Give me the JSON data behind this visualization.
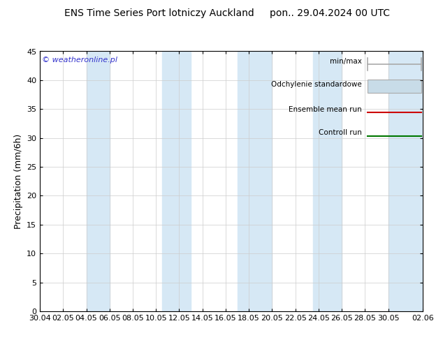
{
  "title_left": "ENS Time Series Port lotniczy Auckland",
  "title_right": "pon.. 29.04.2024 00 UTC",
  "ylabel": "Precipitation (mm/6h)",
  "watermark": "© weatheronline.pl",
  "ylim": [
    0,
    45
  ],
  "yticks": [
    0,
    5,
    10,
    15,
    20,
    25,
    30,
    35,
    40,
    45
  ],
  "bg_color": "#ffffff",
  "plot_bg_color": "#ffffff",
  "shading_color": "#d6e8f5",
  "legend_labels": [
    "min/max",
    "Odchylenie standardowe",
    "Ensemble mean run",
    "Controll run"
  ],
  "minmax_color": "#aaaaaa",
  "odch_color": "#c8dce8",
  "odch_edge_color": "#aaaaaa",
  "ensemble_color": "#cc0000",
  "control_color": "#007700",
  "x_tick_labels": [
    "30.04",
    "02.05",
    "04.05",
    "06.05",
    "08.05",
    "10.05",
    "12.05",
    "14.05",
    "16.05",
    "18.05",
    "20.05",
    "22.05",
    "24.05",
    "26.05",
    "28.05",
    "30.05",
    "02.06"
  ],
  "x_positions": [
    0,
    2,
    4,
    6,
    8,
    10,
    12,
    14,
    16,
    18,
    20,
    22,
    24,
    26,
    28,
    30,
    33
  ],
  "xlim": [
    0,
    33
  ],
  "shade_bands": [
    [
      4,
      6
    ],
    [
      10.5,
      13
    ],
    [
      17,
      20
    ],
    [
      23.5,
      26
    ],
    [
      30,
      33
    ]
  ],
  "title_fontsize": 10,
  "axis_fontsize": 9,
  "tick_fontsize": 8,
  "watermark_fontsize": 8
}
